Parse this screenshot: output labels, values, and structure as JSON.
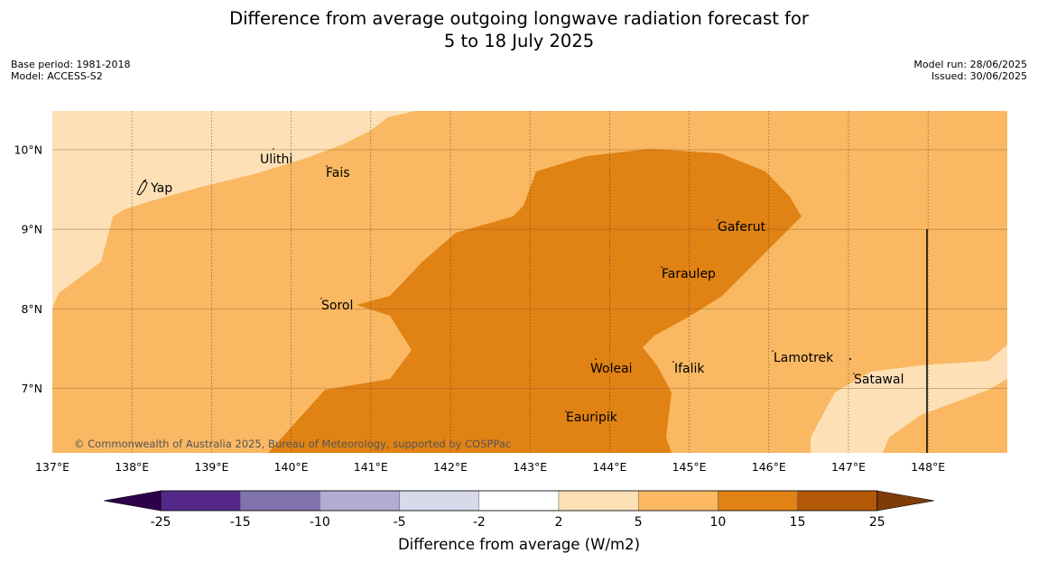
{
  "header": {
    "title_line1": "Difference from average outgoing longwave radiation forecast for",
    "title_line2": "5 to 18 July 2025",
    "base_period": "Base period: 1981-2018",
    "model": "Model: ACCESS-S2",
    "model_run": "Model run: 28/06/2025",
    "issued": "Issued: 30/06/2025"
  },
  "map": {
    "lon_labels": [
      "137°E",
      "138°E",
      "139°E",
      "140°E",
      "141°E",
      "142°E",
      "143°E",
      "144°E",
      "145°E",
      "146°E",
      "147°E",
      "148°E"
    ],
    "lat_labels": [
      "10°N",
      "9°N",
      "8°N",
      "7°N"
    ],
    "places": [
      "Ulithi",
      "Fais",
      "Yap",
      "Gaferut",
      "Faraulep",
      "Sorol",
      "Woleai",
      "Ifalik",
      "Lamotrek",
      "Satawal",
      "Eauripik"
    ],
    "copyright": "© Commonwealth of Australia 2025, Bureau of Meteorology, supported by COSPPac",
    "colors": {
      "band_2_5": "#fde0b6",
      "band_5_10": "#fab862",
      "band_10_15": "#e08214",
      "band_15_25": "#b35806"
    }
  },
  "colorbar": {
    "ticks": [
      "-25",
      "-15",
      "-10",
      "-5",
      "-2",
      "2",
      "5",
      "10",
      "15",
      "25"
    ],
    "colors": [
      "#2d004b",
      "#542788",
      "#8073ac",
      "#b2abd2",
      "#d8daeb",
      "#ffffff",
      "#fee0b6",
      "#fdb863",
      "#e08214",
      "#b35806",
      "#7f3b08"
    ],
    "title": "Difference from average (W/m2)"
  }
}
